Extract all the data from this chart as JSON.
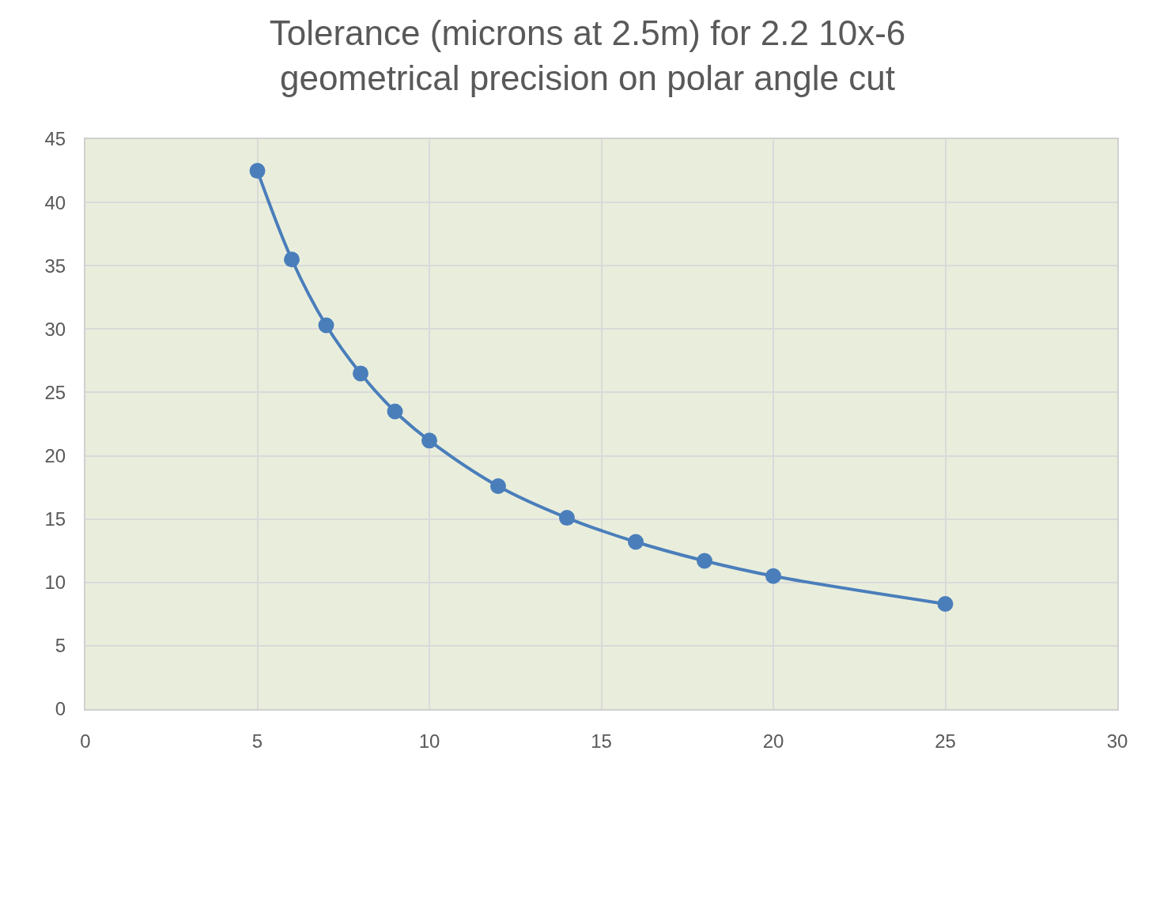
{
  "chart_data": {
    "type": "line",
    "title": "Tolerance (microns at 2.5m) for 2.2 10x-6 geometrical precision on polar angle cut",
    "x": [
      5,
      6,
      7,
      8,
      9,
      10,
      12,
      14,
      16,
      18,
      20,
      25
    ],
    "series": [
      {
        "color": "#4a7ebb",
        "values": [
          42.5,
          35.5,
          30.3,
          26.5,
          23.5,
          21.2,
          17.6,
          15.1,
          13.2,
          11.7,
          10.5,
          8.3
        ]
      }
    ],
    "xlim": [
      0,
      30
    ],
    "xticks": [
      0,
      5,
      10,
      15,
      20,
      25,
      30
    ],
    "ylim": [
      0,
      45
    ],
    "yticks": [
      0,
      5,
      10,
      15,
      20,
      25,
      30,
      35,
      40,
      45
    ],
    "grid": true,
    "marker": "circle",
    "line_style": "solid",
    "legend": false
  }
}
